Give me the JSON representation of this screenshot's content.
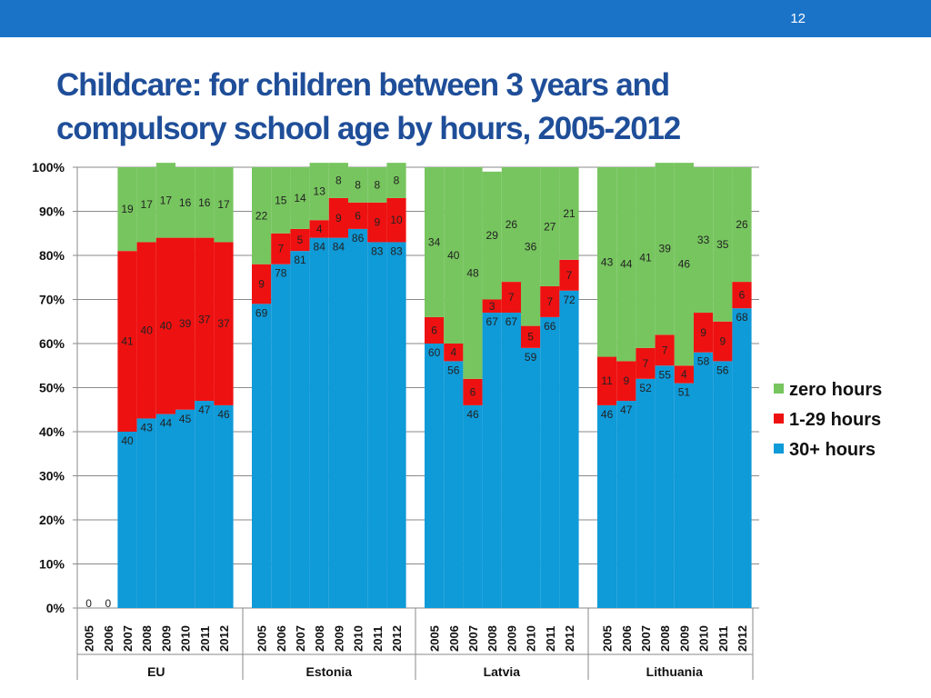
{
  "header": {
    "page_number": "12"
  },
  "title_lines": [
    "Childcare: for children between 3 years and",
    "compulsory school age by hours, 2005-2012"
  ],
  "chart_data": {
    "type": "bar",
    "stacked": true,
    "title": "Childcare: for children between 3 years and compulsory school age by hours, 2005-2012",
    "ylim": [
      0,
      100
    ],
    "y_ticks": [
      "0%",
      "10%",
      "20%",
      "30%",
      "40%",
      "50%",
      "60%",
      "70%",
      "80%",
      "90%",
      "100%"
    ],
    "grid": true,
    "legend_position": "right",
    "years": [
      "2005",
      "2006",
      "2007",
      "2008",
      "2009",
      "2010",
      "2011",
      "2012"
    ],
    "groups": [
      {
        "name": "EU",
        "thirty_plus": [
          0,
          0,
          40,
          43,
          44,
          45,
          47,
          46
        ],
        "one_to_29": [
          null,
          null,
          41,
          40,
          40,
          39,
          37,
          37
        ],
        "zero": [
          null,
          null,
          19,
          17,
          17,
          16,
          16,
          17
        ]
      },
      {
        "name": "Estonia",
        "thirty_plus": [
          69,
          78,
          81,
          84,
          84,
          86,
          83,
          83
        ],
        "one_to_29": [
          9,
          7,
          5,
          4,
          9,
          6,
          9,
          10
        ],
        "zero": [
          22,
          15,
          14,
          13,
          8,
          8,
          8,
          8
        ]
      },
      {
        "name": "Latvia",
        "thirty_plus": [
          60,
          56,
          46,
          67,
          67,
          59,
          66,
          72
        ],
        "one_to_29": [
          6,
          4,
          6,
          3,
          7,
          5,
          7,
          7
        ],
        "zero": [
          34,
          40,
          48,
          29,
          26,
          36,
          27,
          21
        ]
      },
      {
        "name": "Lithuania",
        "thirty_plus": [
          46,
          47,
          52,
          55,
          51,
          58,
          56,
          68
        ],
        "one_to_29": [
          11,
          9,
          7,
          7,
          4,
          9,
          9,
          6
        ],
        "zero": [
          43,
          44,
          41,
          39,
          46,
          33,
          35,
          26
        ]
      }
    ],
    "series": [
      {
        "key": "zero",
        "name": "zero hours",
        "color": "#77c55f"
      },
      {
        "key": "one_to_29",
        "name": "1-29 hours",
        "color": "#ee1111"
      },
      {
        "key": "thirty_plus",
        "name": "30+ hours",
        "color": "#0f9ad8"
      }
    ]
  }
}
